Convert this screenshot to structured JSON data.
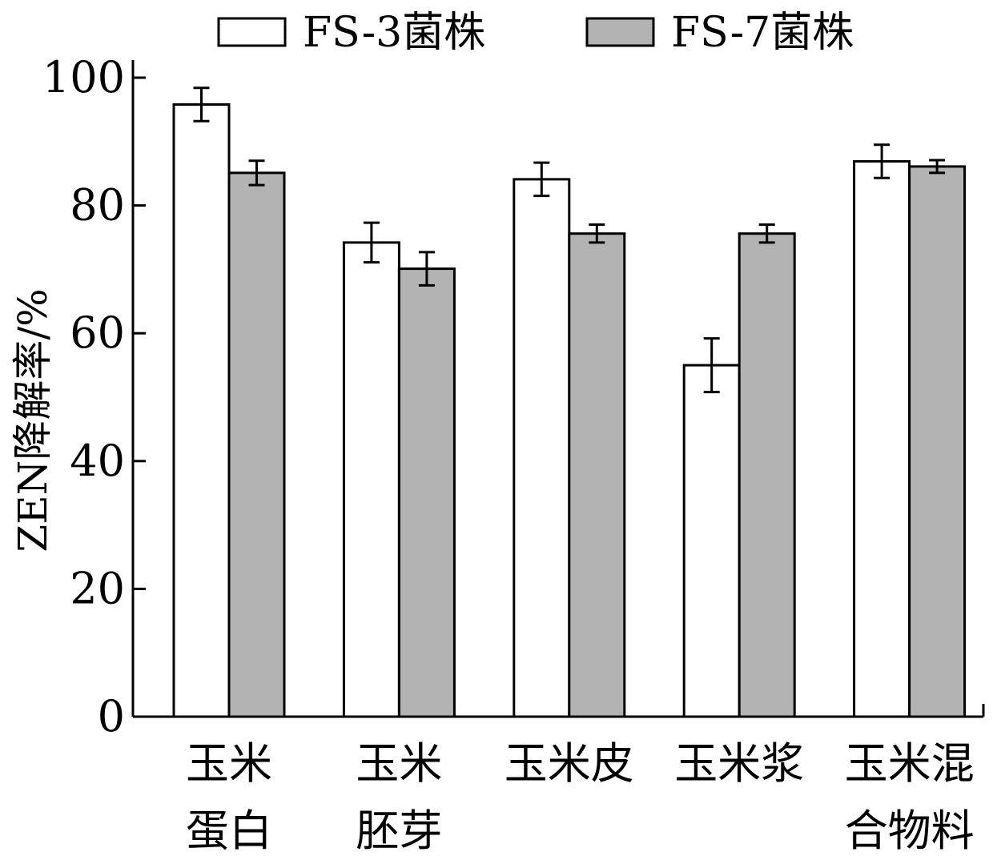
{
  "chart_data": {
    "type": "bar",
    "ylabel": "ZEN降解率/%",
    "ylim": [
      0,
      100
    ],
    "yticks": [
      0,
      20,
      40,
      60,
      80,
      100
    ],
    "grid": false,
    "legend_position": "top",
    "categories": [
      [
        "玉米",
        "蛋白"
      ],
      [
        "玉米",
        "胚芽"
      ],
      [
        "玉米皮"
      ],
      [
        "玉米浆"
      ],
      [
        "玉米混",
        "合物料"
      ]
    ],
    "series": [
      {
        "name": "FS-3菌株",
        "color": "#ffffff",
        "values": [
          95.8,
          74.2,
          84.1,
          55.0,
          86.9
        ],
        "errors": [
          2.6,
          3.1,
          2.6,
          4.2,
          2.6
        ]
      },
      {
        "name": "FS-7菌株",
        "color": "#b3b3b3",
        "values": [
          85.1,
          70.1,
          75.6,
          75.6,
          86.1
        ],
        "errors": [
          1.9,
          2.6,
          1.4,
          1.4,
          1.0
        ]
      }
    ]
  }
}
